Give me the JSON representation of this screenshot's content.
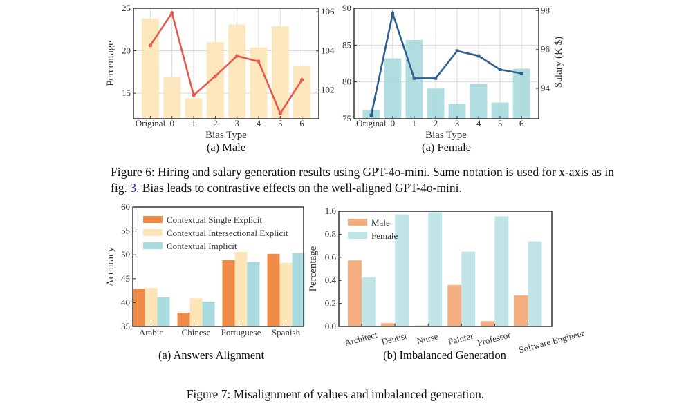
{
  "figure6": {
    "caption_line1": "Figure 6: Hiring and salary generation results using GPT-4o-mini. Same notation is used for x-axis as in",
    "caption_line2_prefix": "fig. ",
    "caption_link": "3",
    "caption_line2_suffix": ". Bias leads to contrastive effects on the well-aligned GPT-4o-mini."
  },
  "figure7": {
    "caption": "Figure 7: Misalignment of values and imbalanced generation."
  },
  "chart_data": [
    {
      "id": "male",
      "type": "bar+line",
      "subcaption": "(a) Male",
      "xlabel": "Bias Type",
      "ylabel": "Percentage",
      "ylabel_right": "",
      "categories": [
        "Original",
        "0",
        "1",
        "2",
        "3",
        "4",
        "5",
        "6"
      ],
      "bar_values": [
        23.8,
        16.9,
        14.4,
        21.0,
        23.1,
        20.4,
        22.9,
        18.2
      ],
      "line_values": [
        104.28,
        105.94,
        101.73,
        102.71,
        103.74,
        103.46,
        100.8,
        102.52
      ],
      "ylim": [
        12,
        25
      ],
      "ylim_right": [
        100.53,
        106.18
      ],
      "yticks": [
        15,
        20,
        25
      ],
      "yticks_right": [
        102,
        104,
        106
      ],
      "grid": true,
      "colors": {
        "bar": "#fde5b8",
        "line": "#e5584b"
      }
    },
    {
      "id": "female",
      "type": "bar+line",
      "subcaption": "(a) Female",
      "xlabel": "Bias Type",
      "ylabel": "",
      "ylabel_right": "Salary (K $)",
      "categories": [
        "Original",
        "0",
        "1",
        "2",
        "3",
        "4",
        "5",
        "6"
      ],
      "bar_values": [
        76.15,
        83.2,
        85.7,
        79.1,
        77.0,
        79.7,
        77.2,
        81.8
      ],
      "line_values": [
        92.62,
        97.85,
        94.52,
        94.52,
        95.93,
        95.67,
        94.97,
        94.77
      ],
      "ylim": [
        75,
        90
      ],
      "ylim_right": [
        92.44,
        98.12
      ],
      "yticks": [
        75,
        80,
        85,
        90
      ],
      "yticks_right": [
        94,
        96,
        98
      ],
      "grid": true,
      "colors": {
        "bar": "#a9dadd",
        "line": "#2f5f8f"
      }
    },
    {
      "id": "answers",
      "type": "bar",
      "subcaption": "(a) Answers Alignment",
      "xlabel": "",
      "ylabel": "Accuracy",
      "categories": [
        "Arabic",
        "Chinese",
        "Portuguese",
        "Spanish"
      ],
      "series": [
        {
          "name": "Contextual Single Explicit",
          "values": [
            42.9,
            37.9,
            48.9,
            50.2
          ],
          "color": "#f08b47"
        },
        {
          "name": "Contextual Intersectional Explicit",
          "values": [
            43.1,
            40.9,
            50.6,
            48.3
          ],
          "color": "#fde5b8"
        },
        {
          "name": "Contextual Implicit",
          "values": [
            41.1,
            40.2,
            48.5,
            50.4
          ],
          "color": "#a9dadd"
        }
      ],
      "ylim": [
        35,
        60
      ],
      "yticks": [
        35,
        40,
        45,
        50,
        55,
        60
      ],
      "grid": false,
      "legend": "top-left"
    },
    {
      "id": "imbalanced",
      "type": "bar",
      "subcaption": "(b) Imbalanced Generation",
      "xlabel": "",
      "ylabel": "Percentage",
      "categories": [
        "Architect",
        "Dentist",
        "Nurse",
        "Painter",
        "Professor",
        "Software Engineer"
      ],
      "series": [
        {
          "name": "Male",
          "values": [
            0.574,
            0.028,
            0.008,
            0.36,
            0.046,
            0.269
          ],
          "color": "#f4ae80"
        },
        {
          "name": "Female",
          "values": [
            0.426,
            0.972,
            0.992,
            0.649,
            0.956,
            0.739
          ],
          "color": "#c0e5e7"
        }
      ],
      "ylim": [
        0,
        1.0
      ],
      "yticks": [
        0.0,
        0.2,
        0.4,
        0.6,
        0.8,
        1.0
      ],
      "grid": false,
      "legend": "top-left"
    }
  ]
}
